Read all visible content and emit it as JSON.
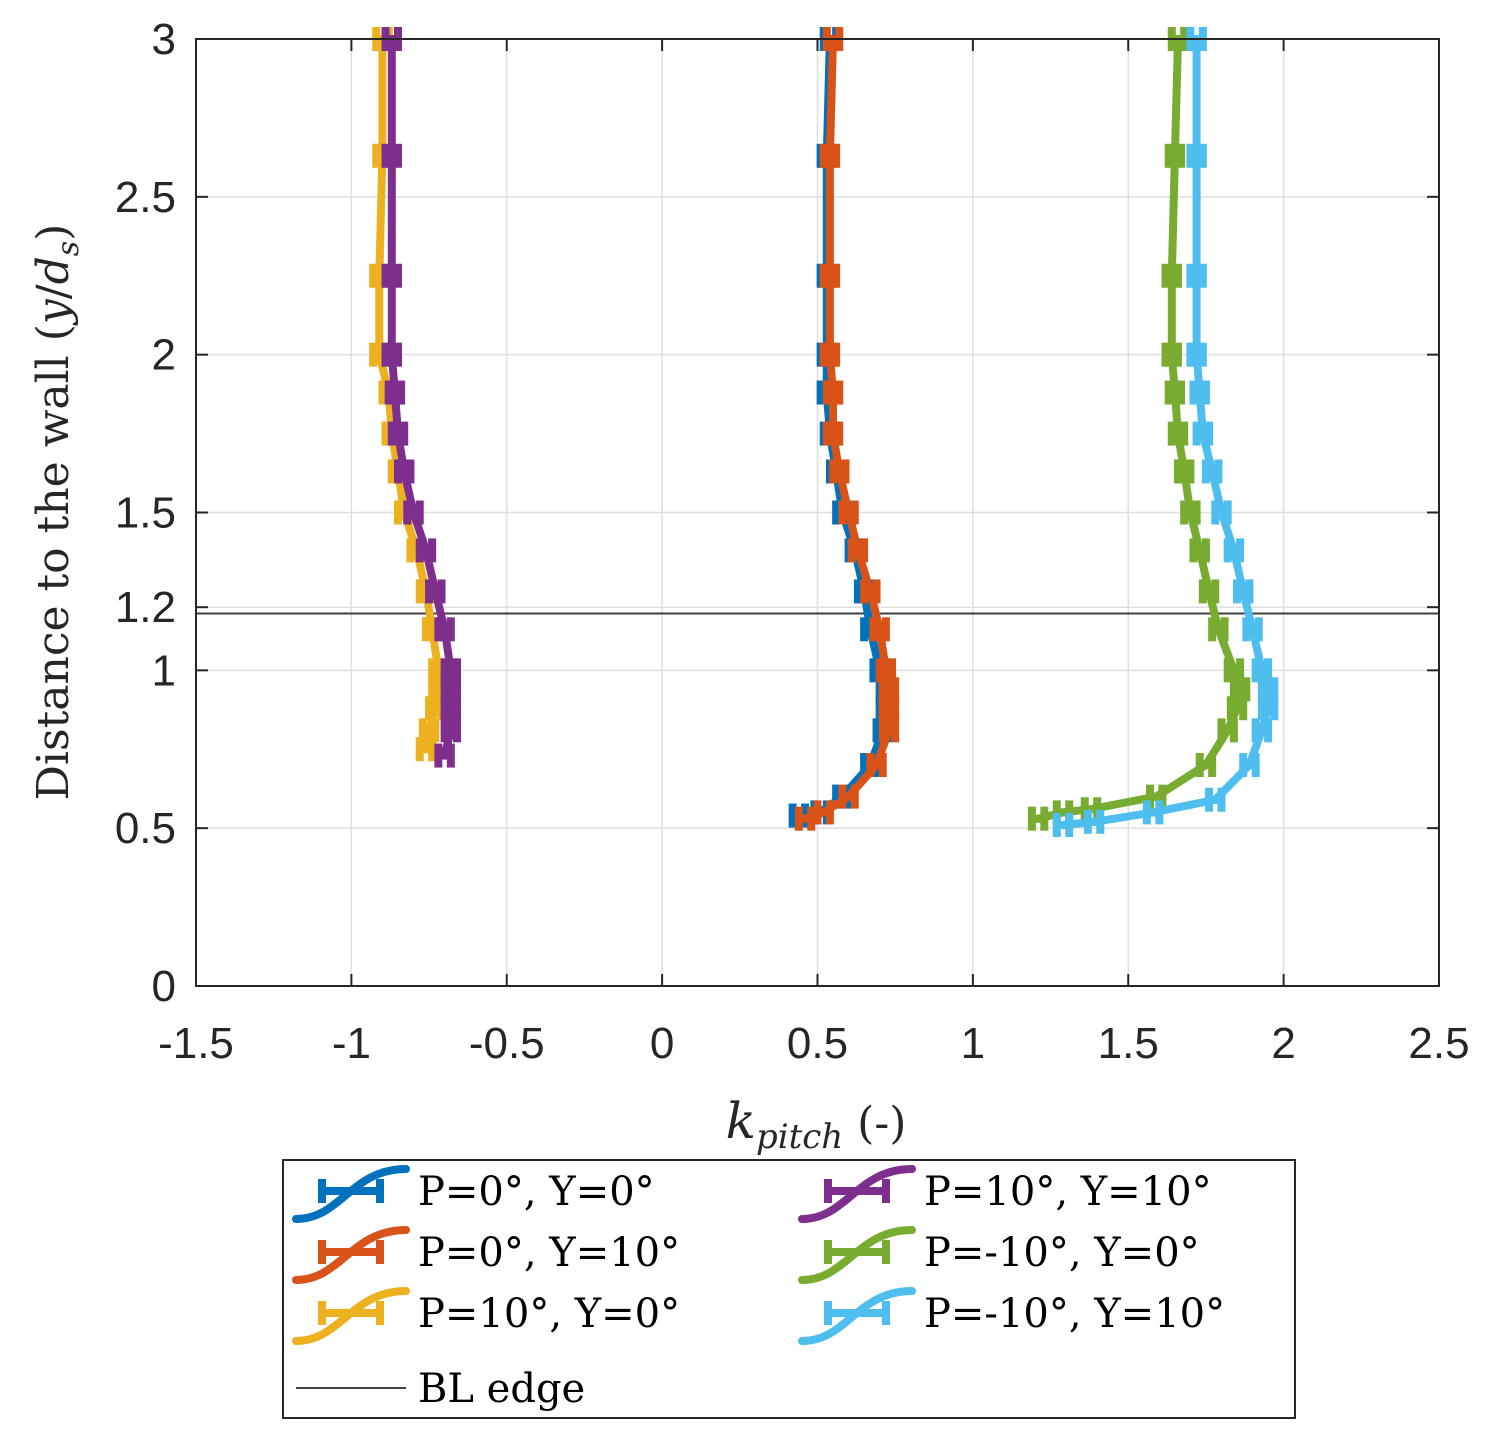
{
  "chart_data": {
    "type": "line",
    "xlabel": {
      "main": "k",
      "sub": "pitch",
      "suffix": " (-)"
    },
    "ylabel": {
      "prefix": "Distance to the wall (",
      "y": "y",
      "slash": "/",
      "d": "d",
      "sub": "s",
      "suffix": ")"
    },
    "xlim": [
      -1.5,
      2.5
    ],
    "ylim": [
      0,
      3
    ],
    "xticks": [
      {
        "v": -1.5,
        "label": "-1.5"
      },
      {
        "v": -1,
        "label": "-1"
      },
      {
        "v": -0.5,
        "label": "-0.5"
      },
      {
        "v": 0,
        "label": "0"
      },
      {
        "v": 0.5,
        "label": "0.5"
      },
      {
        "v": 1,
        "label": "1"
      },
      {
        "v": 1.5,
        "label": "1.5"
      },
      {
        "v": 2,
        "label": "2"
      },
      {
        "v": 2.5,
        "label": "2.5"
      }
    ],
    "yticks": [
      {
        "v": 0,
        "label": "0"
      },
      {
        "v": 0.5,
        "label": "0.5"
      },
      {
        "v": 1,
        "label": "1"
      },
      {
        "v": 1.2,
        "label": "1.2"
      },
      {
        "v": 1.5,
        "label": "1.5"
      },
      {
        "v": 2,
        "label": "2"
      },
      {
        "v": 2.5,
        "label": "2.5"
      },
      {
        "v": 3,
        "label": "3"
      }
    ],
    "grid": true,
    "bl_edge": {
      "y": 1.18,
      "label": "BL edge",
      "color": "#404040"
    },
    "legend_position": "below",
    "series": [
      {
        "name": "P=0°, Y=0°",
        "color": "#0072BD",
        "x": [
          0.54,
          0.53,
          0.53,
          0.53,
          0.53,
          0.54,
          0.56,
          0.58,
          0.62,
          0.65,
          0.67,
          0.7,
          0.72,
          0.72,
          0.71,
          0.67,
          0.58,
          0.51,
          0.44
        ],
        "y": [
          3.0,
          2.63,
          2.25,
          2.0,
          1.88,
          1.75,
          1.63,
          1.5,
          1.38,
          1.25,
          1.13,
          1.0,
          0.94,
          0.88,
          0.81,
          0.7,
          0.6,
          0.55,
          0.54
        ],
        "err": [
          0.02,
          0.02,
          0.02,
          0.02,
          0.02,
          0.02,
          0.02,
          0.02,
          0.02,
          0.02,
          0.02,
          0.02,
          0.02,
          0.02,
          0.02,
          0.02,
          0.02,
          0.02,
          0.02
        ]
      },
      {
        "name": "P=0°, Y=10°",
        "color": "#D95319",
        "x": [
          0.55,
          0.54,
          0.54,
          0.54,
          0.55,
          0.55,
          0.57,
          0.6,
          0.63,
          0.67,
          0.7,
          0.72,
          0.73,
          0.73,
          0.73,
          0.69,
          0.6,
          0.52,
          0.46
        ],
        "y": [
          3.0,
          2.63,
          2.25,
          2.0,
          1.88,
          1.75,
          1.63,
          1.5,
          1.38,
          1.25,
          1.13,
          1.0,
          0.94,
          0.88,
          0.81,
          0.7,
          0.6,
          0.55,
          0.53
        ],
        "err": [
          0.02,
          0.02,
          0.02,
          0.02,
          0.02,
          0.02,
          0.02,
          0.02,
          0.02,
          0.02,
          0.02,
          0.02,
          0.02,
          0.02,
          0.02,
          0.02,
          0.02,
          0.02,
          0.02
        ]
      },
      {
        "name": "P=10°, Y=0°",
        "color": "#EDB120",
        "x": [
          -0.9,
          -0.9,
          -0.91,
          -0.91,
          -0.88,
          -0.87,
          -0.85,
          -0.83,
          -0.79,
          -0.76,
          -0.74,
          -0.72,
          -0.72,
          -0.73,
          -0.75,
          -0.76
        ],
        "y": [
          3.0,
          2.63,
          2.25,
          2.0,
          1.88,
          1.75,
          1.63,
          1.5,
          1.38,
          1.25,
          1.13,
          1.0,
          0.94,
          0.88,
          0.81,
          0.75
        ],
        "err": [
          0.02,
          0.02,
          0.02,
          0.02,
          0.02,
          0.02,
          0.02,
          0.02,
          0.02,
          0.02,
          0.02,
          0.02,
          0.02,
          0.02,
          0.02,
          0.02
        ]
      },
      {
        "name": "P=10°, Y=10°",
        "color": "#7E2F8E",
        "x": [
          -0.87,
          -0.87,
          -0.87,
          -0.87,
          -0.86,
          -0.85,
          -0.83,
          -0.8,
          -0.76,
          -0.73,
          -0.7,
          -0.68,
          -0.68,
          -0.68,
          -0.68,
          -0.7
        ],
        "y": [
          3.0,
          2.63,
          2.25,
          2.0,
          1.88,
          1.75,
          1.63,
          1.5,
          1.38,
          1.25,
          1.13,
          1.0,
          0.94,
          0.88,
          0.81,
          0.73
        ],
        "err": [
          0.02,
          0.02,
          0.02,
          0.02,
          0.02,
          0.02,
          0.02,
          0.02,
          0.02,
          0.02,
          0.02,
          0.02,
          0.02,
          0.02,
          0.02,
          0.02
        ]
      },
      {
        "name": "P=-10°, Y=0°",
        "color": "#77AC30",
        "x": [
          1.66,
          1.65,
          1.64,
          1.64,
          1.65,
          1.66,
          1.68,
          1.7,
          1.73,
          1.76,
          1.79,
          1.84,
          1.86,
          1.85,
          1.82,
          1.75,
          1.59,
          1.38,
          1.29,
          1.21
        ],
        "y": [
          3.0,
          2.63,
          2.25,
          2.0,
          1.88,
          1.75,
          1.63,
          1.5,
          1.38,
          1.25,
          1.13,
          1.0,
          0.94,
          0.88,
          0.81,
          0.7,
          0.6,
          0.56,
          0.55,
          0.53
        ],
        "err": [
          0.02,
          0.02,
          0.02,
          0.02,
          0.02,
          0.02,
          0.02,
          0.02,
          0.02,
          0.02,
          0.02,
          0.02,
          0.02,
          0.02,
          0.02,
          0.02,
          0.02,
          0.02,
          0.02,
          0.02
        ]
      },
      {
        "name": "P=-10°, Y=10°",
        "color": "#4DBEEE",
        "x": [
          1.72,
          1.72,
          1.72,
          1.72,
          1.73,
          1.74,
          1.77,
          1.8,
          1.84,
          1.87,
          1.9,
          1.93,
          1.95,
          1.95,
          1.93,
          1.89,
          1.78,
          1.58,
          1.39,
          1.29
        ],
        "y": [
          3.0,
          2.63,
          2.25,
          2.0,
          1.88,
          1.75,
          1.63,
          1.5,
          1.38,
          1.25,
          1.13,
          1.0,
          0.94,
          0.88,
          0.81,
          0.7,
          0.59,
          0.55,
          0.52,
          0.51
        ],
        "err": [
          0.02,
          0.02,
          0.02,
          0.02,
          0.02,
          0.02,
          0.02,
          0.02,
          0.02,
          0.02,
          0.02,
          0.02,
          0.02,
          0.02,
          0.02,
          0.02,
          0.02,
          0.02,
          0.02,
          0.02
        ]
      }
    ]
  }
}
